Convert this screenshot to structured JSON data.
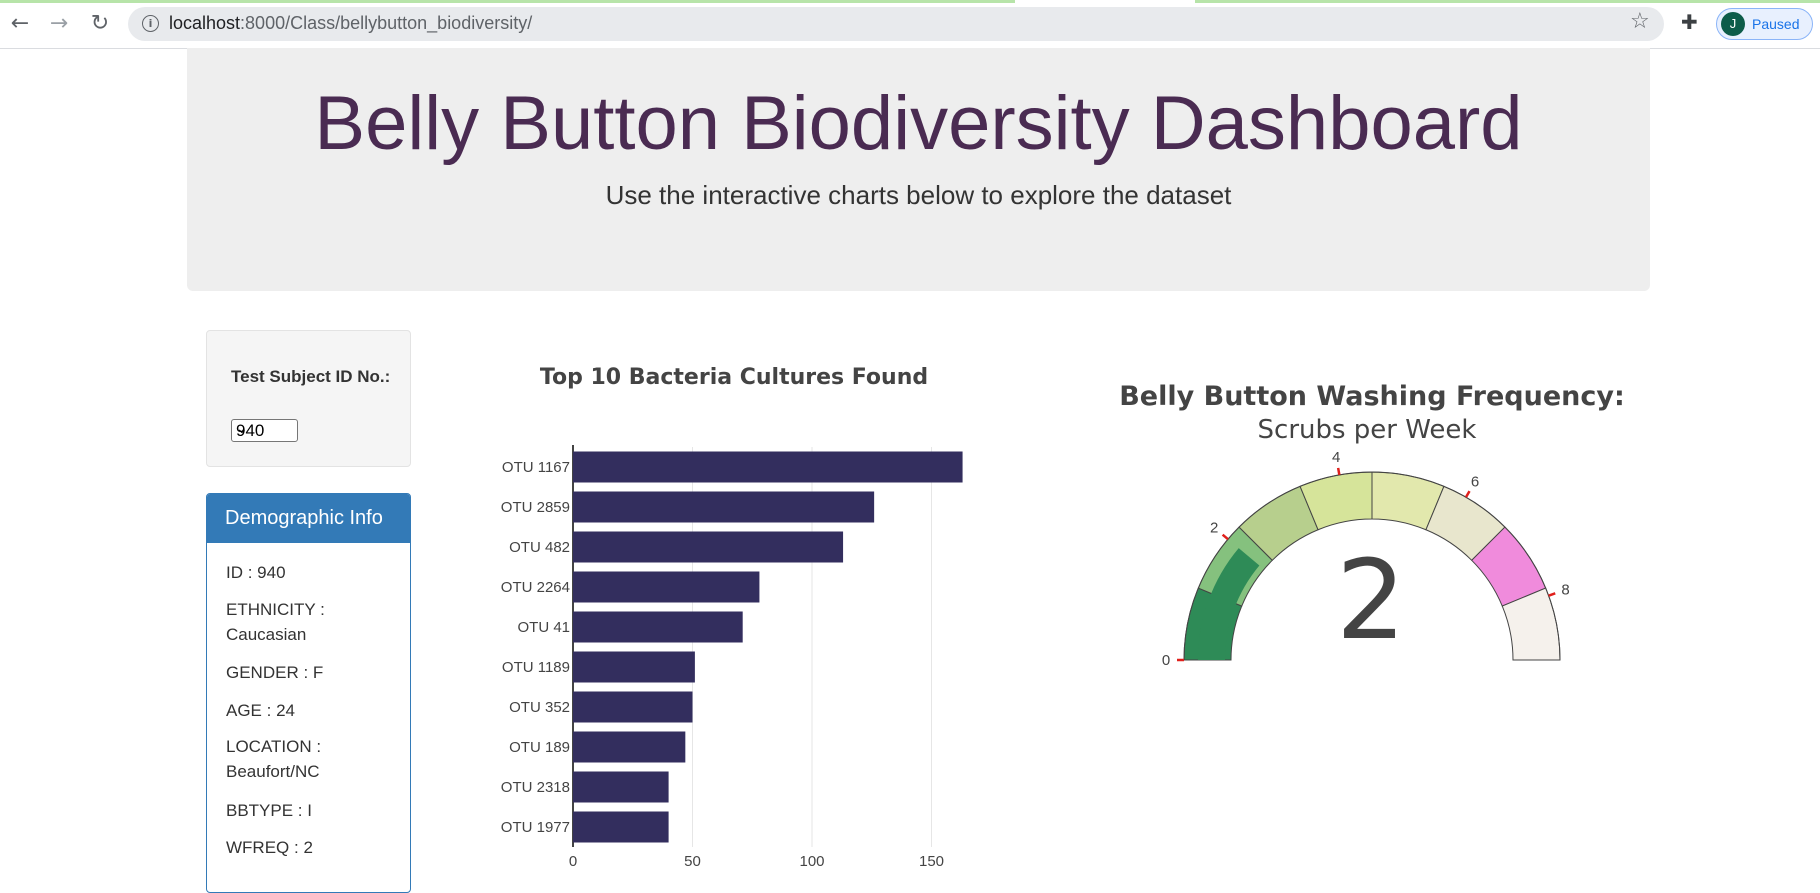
{
  "browser": {
    "url_host": "localhost",
    "url_rest": ":8000/Class/bellybutton_biodiversity/",
    "profile_initial": "J",
    "profile_label": "Paused"
  },
  "header": {
    "title": "Belly Button Biodiversity Dashboard",
    "subtitle": "Use the interactive charts below to explore the dataset"
  },
  "selector": {
    "label": "Test Subject ID No.:",
    "selected": "940"
  },
  "demographics": {
    "heading": "Demographic Info",
    "items": [
      "ID : 940",
      "ETHNICITY : Caucasian",
      "GENDER : F",
      "AGE : 24",
      "LOCATION : Beaufort/NC",
      "BBTYPE : I",
      "WFREQ : 2"
    ]
  },
  "colors": {
    "bar": "#332e5e",
    "title": "#4a2b52",
    "panel_blue": "#337ab7"
  },
  "chart_data": [
    {
      "type": "bar",
      "orientation": "horizontal",
      "title": "Top 10 Bacteria Cultures Found",
      "categories": [
        "OTU 1167",
        "OTU 2859",
        "OTU 482",
        "OTU 2264",
        "OTU 41",
        "OTU 1189",
        "OTU 352",
        "OTU 189",
        "OTU 2318",
        "OTU 1977"
      ],
      "values": [
        163,
        126,
        113,
        78,
        71,
        51,
        50,
        47,
        40,
        40
      ],
      "xticks": [
        0,
        50,
        100,
        150
      ],
      "xlim": [
        0,
        165
      ],
      "grid": true
    },
    {
      "type": "gauge",
      "title": "Belly Button Washing Frequency:",
      "subtitle": "Scrubs per Week",
      "value": 2,
      "range": [
        0,
        9
      ],
      "ticks": [
        "0",
        "2",
        "4",
        "6",
        "8"
      ],
      "step_colors": [
        "#2e8b57",
        "#85c17e",
        "#b7cf8d",
        "#d6e49a",
        "#e2e8ad",
        "#e8e6cd",
        "#f08bdc",
        "#f5f1ec"
      ]
    }
  ]
}
